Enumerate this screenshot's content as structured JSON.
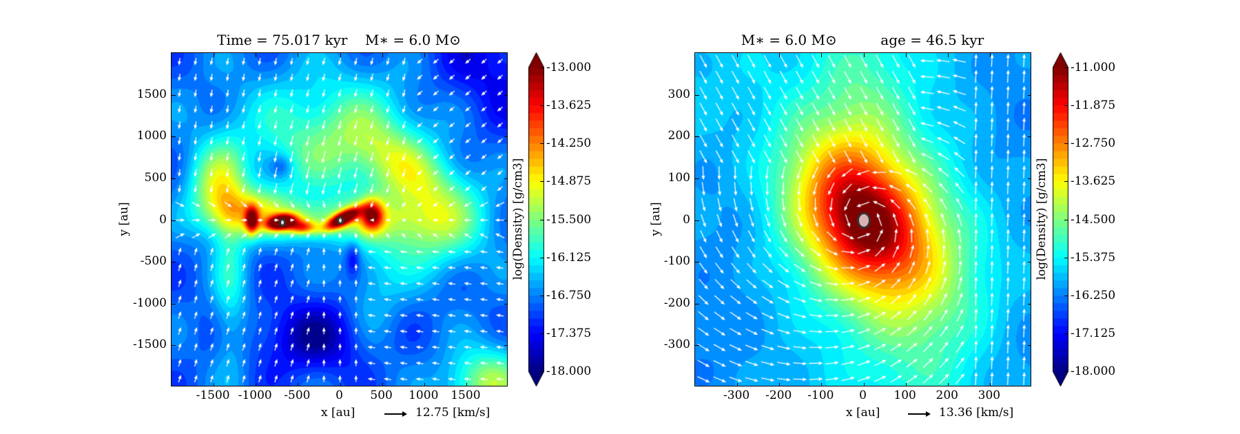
{
  "chart_data": [
    {
      "type": "heatmap",
      "subtype": "filled-contour-with-quiver",
      "title": "Time = 75.017 kyr    M∗ = 6.0 M⊙",
      "xlabel": "x [au]",
      "ylabel": "y [au]",
      "xlim": [
        -2000,
        2000
      ],
      "ylim": [
        -2000,
        2000
      ],
      "xticks": [
        "-1500",
        "-1000",
        "-500",
        "0",
        "500",
        "1000",
        "1500"
      ],
      "yticks": [
        "-1500",
        "-1000",
        "-500",
        "0",
        "500",
        "1000",
        "1500"
      ],
      "colorbar": {
        "label": "log(Density) [g/cm3]",
        "range": [
          -18.0,
          -13.0
        ],
        "ticks": [
          "-13.000",
          "-13.625",
          "-14.250",
          "-14.875",
          "-15.500",
          "-16.125",
          "-16.750",
          "-17.375",
          "-18.000"
        ],
        "colormap": "jet",
        "extend": "both"
      },
      "quiver_key": {
        "value": "12.75 [km/s]"
      },
      "sinks": [
        {
          "x": -680,
          "y": -30
        },
        {
          "x": 0,
          "y": 0
        }
      ],
      "peak_value": -13.0
    },
    {
      "type": "heatmap",
      "subtype": "filled-contour-with-quiver",
      "title": "M∗ = 6.0 M⊙          age = 46.5 kyr",
      "xlabel": "x [au]",
      "ylabel": "y [au]",
      "xlim": [
        -400,
        400
      ],
      "ylim": [
        -400,
        400
      ],
      "xticks": [
        "-300",
        "-200",
        "-100",
        "0",
        "100",
        "200",
        "300"
      ],
      "yticks": [
        "-300",
        "-200",
        "-100",
        "0",
        "100",
        "200",
        "300"
      ],
      "colorbar": {
        "label": "log(Density) [g/cm3]",
        "range": [
          -18.0,
          -11.0
        ],
        "ticks": [
          "-11.000",
          "-11.875",
          "-12.750",
          "-13.625",
          "-14.500",
          "-15.375",
          "-16.250",
          "-17.125",
          "-18.000"
        ],
        "colormap": "jet",
        "extend": "both"
      },
      "quiver_key": {
        "value": "13.36 [km/s]"
      },
      "sinks": [
        {
          "x": 0,
          "y": 0
        }
      ],
      "peak_value": -11.0
    }
  ],
  "colors": {
    "arrow": "#ffffff",
    "cbar_top": "#800000",
    "cbar_bottom": "#00007f",
    "sink_fill_left": "#e0e0d8",
    "sink_fill_right": "#d9b3b3",
    "sink_ring": "#333333"
  }
}
